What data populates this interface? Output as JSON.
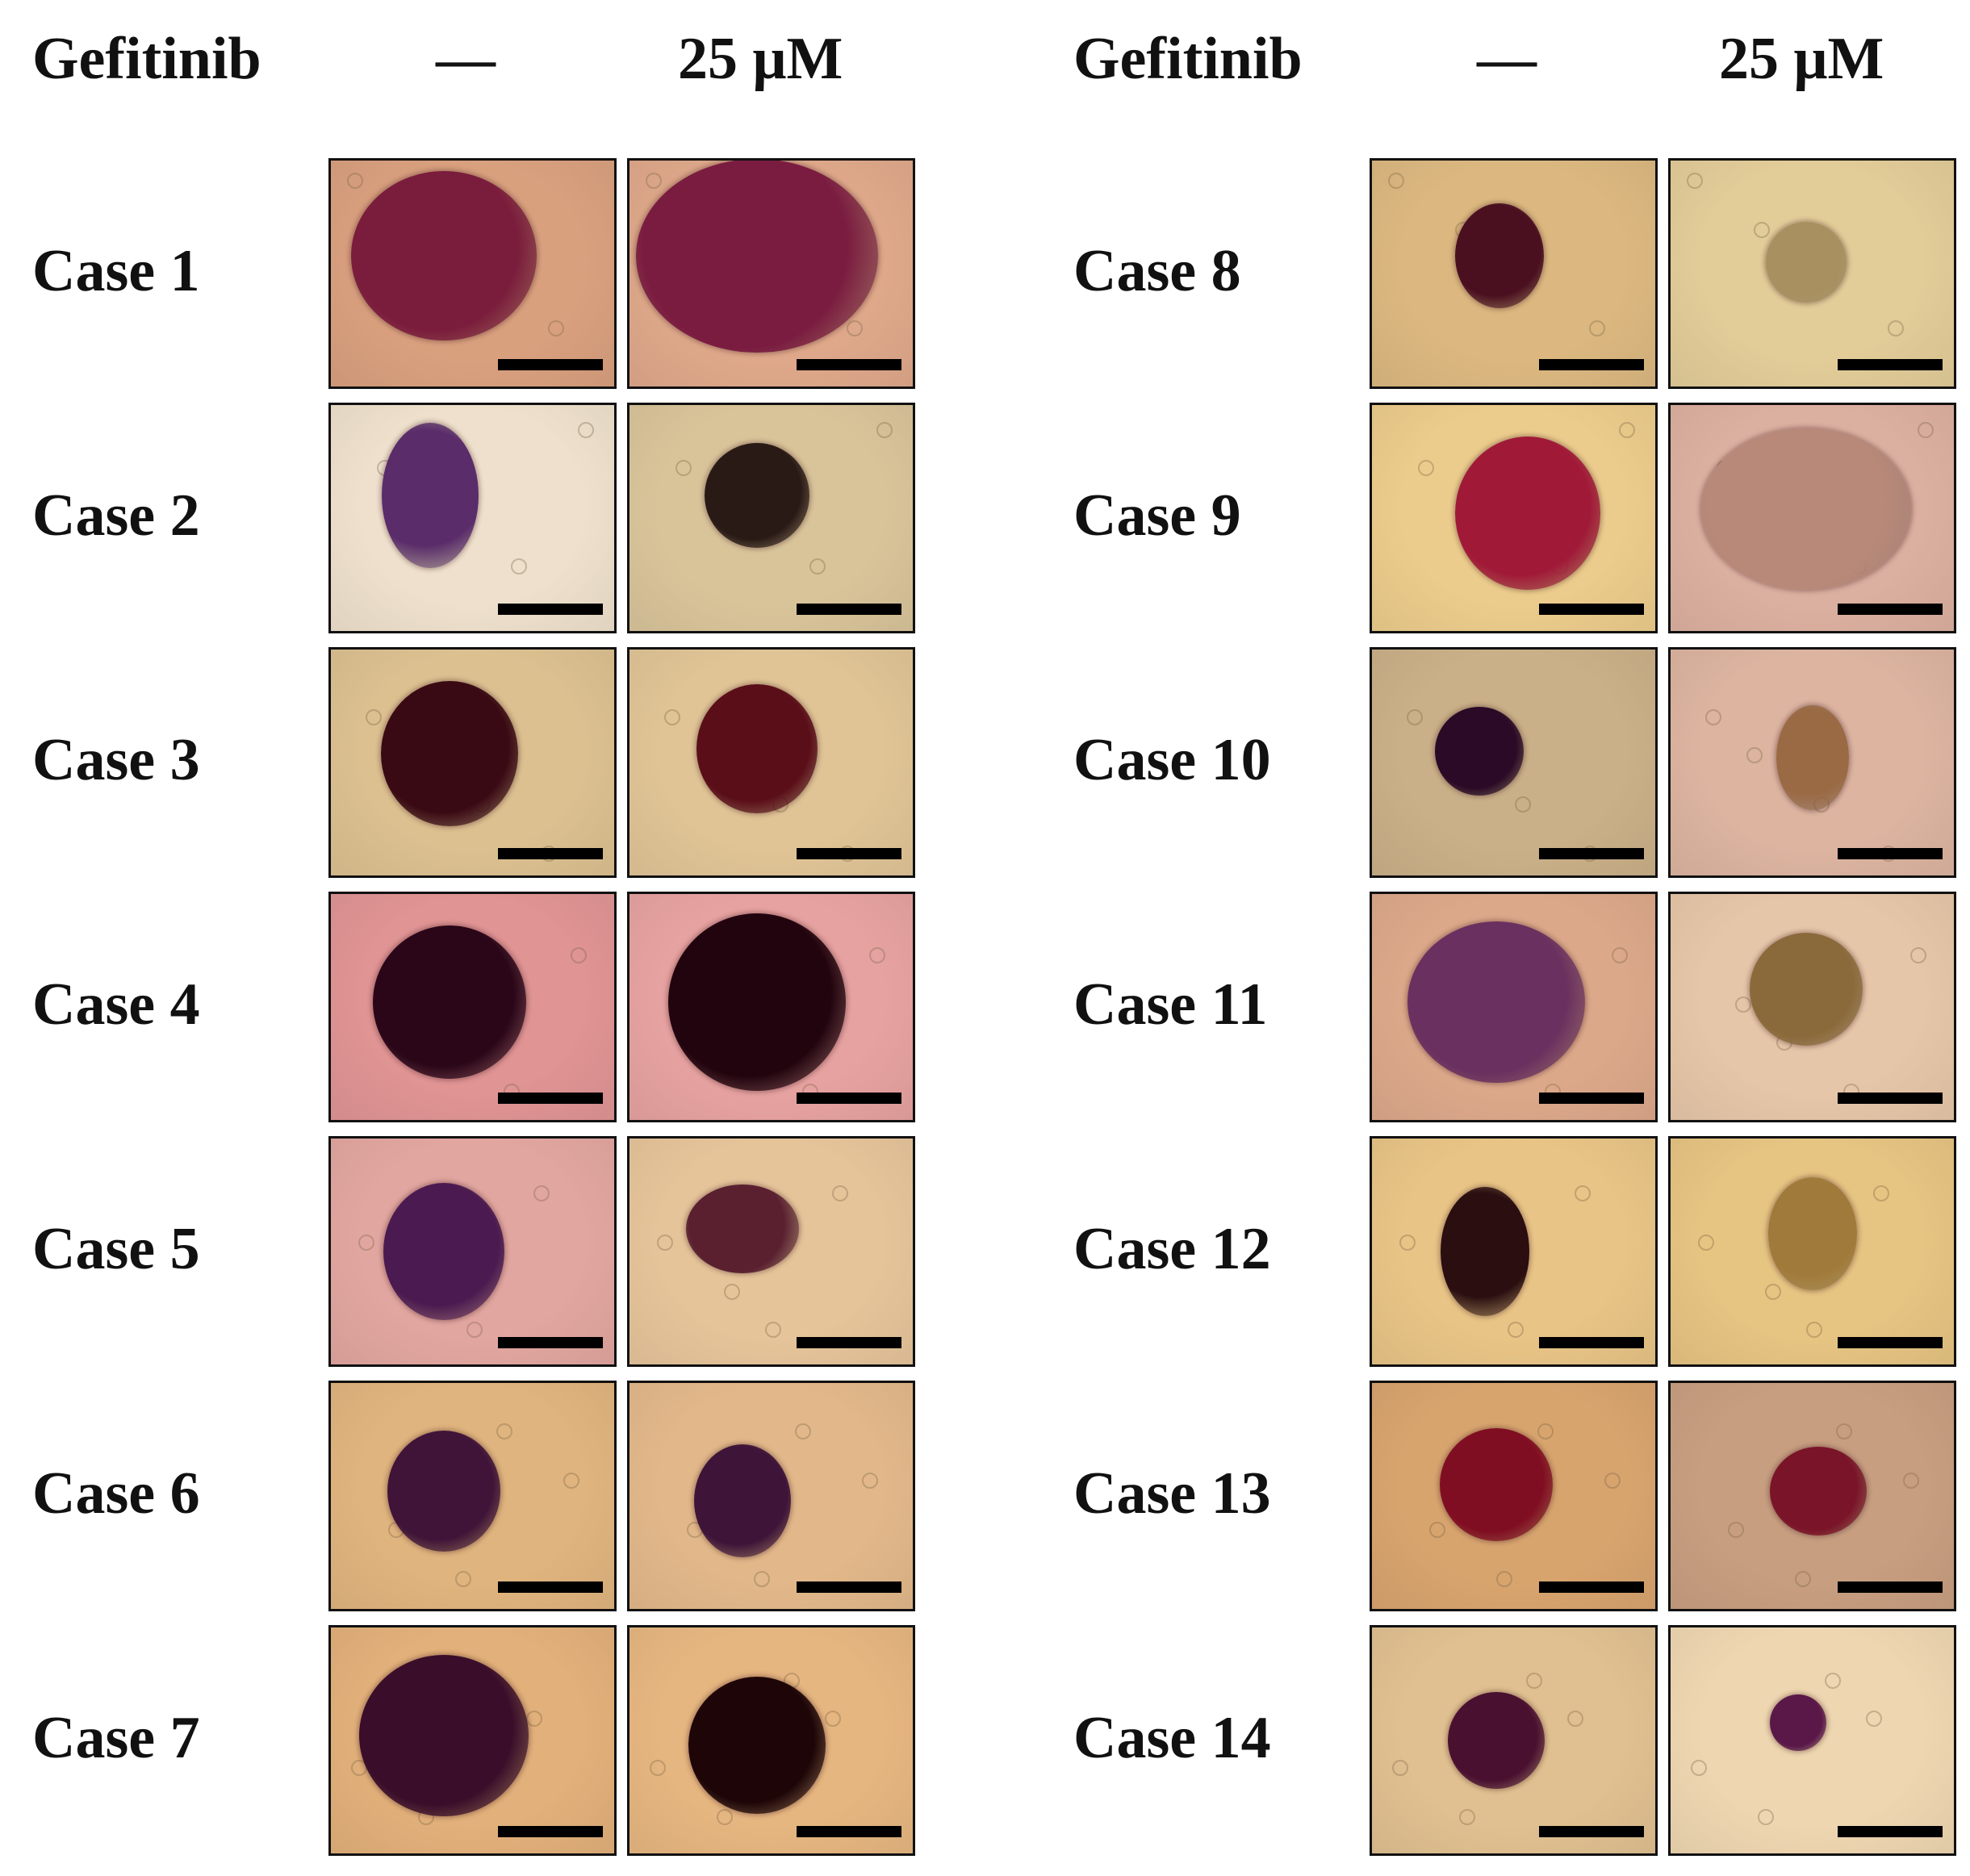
{
  "headers": {
    "left": {
      "drug": "Gefitinib",
      "control": "—",
      "dose": "25 μM"
    },
    "right": {
      "drug": "Gefitinib",
      "control": "—",
      "dose": "25 μM"
    }
  },
  "panels": {
    "left": [
      {
        "label": "Case 1",
        "control": {
          "bg": "#d9a07e",
          "spheroid": "#7a1c3c"
        },
        "treated": {
          "bg": "#dfa88a",
          "spheroid": "#7a1c40"
        }
      },
      {
        "label": "Case 2",
        "control": {
          "bg": "#eee0cc",
          "spheroid": "#5a2c6a"
        },
        "treated": {
          "bg": "#d9c49a",
          "spheroid": "#2a1a16"
        }
      },
      {
        "label": "Case 3",
        "control": {
          "bg": "#dcc090",
          "spheroid": "#3a0a14"
        },
        "treated": {
          "bg": "#e0c496",
          "spheroid": "#5a0e18"
        }
      },
      {
        "label": "Case 4",
        "control": {
          "bg": "#e09494",
          "spheroid": "#2a0618"
        },
        "treated": {
          "bg": "#e6a2a0",
          "spheroid": "#22040e"
        }
      },
      {
        "label": "Case 5",
        "control": {
          "bg": "#e2a6a0",
          "spheroid": "#4a1a50"
        },
        "treated": {
          "bg": "#e6c49a",
          "spheroid": "#5a2030"
        }
      },
      {
        "label": "Case 6",
        "control": {
          "bg": "#e0b47e",
          "spheroid": "#401438"
        },
        "treated": {
          "bg": "#e2b88a",
          "spheroid": "#3e1438"
        }
      },
      {
        "label": "Case 7",
        "control": {
          "bg": "#e2b07a",
          "spheroid": "#3a0e2a"
        },
        "treated": {
          "bg": "#e6b680",
          "spheroid": "#1e0608"
        }
      }
    ],
    "right": [
      {
        "label": "Case 8",
        "control": {
          "bg": "#dcb880",
          "spheroid": "#4a1020"
        },
        "treated": {
          "bg": "#e2cc98",
          "spheroid": "#a89060"
        }
      },
      {
        "label": "Case 9",
        "control": {
          "bg": "#eccc8c",
          "spheroid": "#a01a38"
        },
        "treated": {
          "bg": "#dcb0a0",
          "spheroid": "#b88878"
        }
      },
      {
        "label": "Case 10",
        "control": {
          "bg": "#cab088",
          "spheroid": "#2a0a26"
        },
        "treated": {
          "bg": "#dcb4a0",
          "spheroid": "#9a6a44"
        }
      },
      {
        "label": "Case 11",
        "control": {
          "bg": "#dca88a",
          "spheroid": "#6a3060"
        },
        "treated": {
          "bg": "#e6c6a8",
          "spheroid": "#8a6a3a"
        }
      },
      {
        "label": "Case 12",
        "control": {
          "bg": "#e8c486",
          "spheroid": "#2a0e10"
        },
        "treated": {
          "bg": "#e6c482",
          "spheroid": "#a07a3a"
        }
      },
      {
        "label": "Case 13",
        "control": {
          "bg": "#d8a46e",
          "spheroid": "#800e22"
        },
        "treated": {
          "bg": "#c89e80",
          "spheroid": "#7a1428"
        }
      },
      {
        "label": "Case 14",
        "control": {
          "bg": "#e0c090",
          "spheroid": "#4a1030"
        },
        "treated": {
          "bg": "#eed6b0",
          "spheroid": "#5a1848"
        }
      }
    ]
  }
}
